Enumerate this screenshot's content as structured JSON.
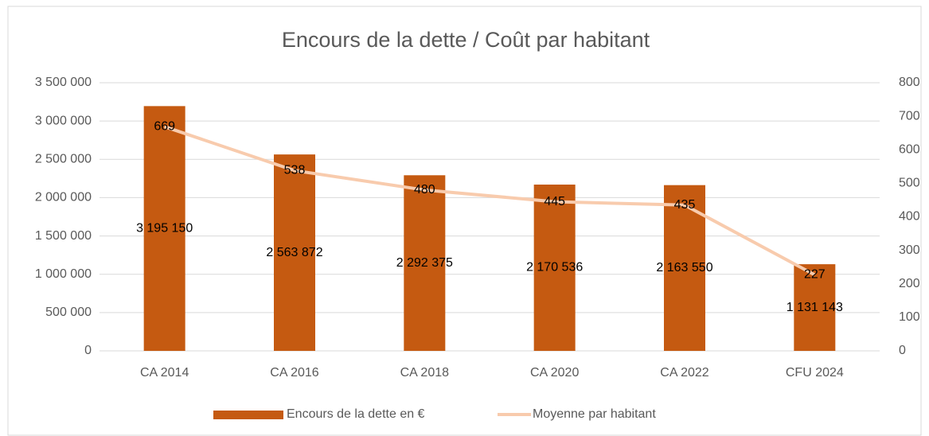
{
  "chart_data": {
    "type": "bar",
    "title": "Encours de la dette / Coût par habitant",
    "categories": [
      "CA 2014",
      "CA 2016",
      "CA 2018",
      "CA 2020",
      "CA 2022",
      "CFU 2024"
    ],
    "series": [
      {
        "name": "Encours de la dette en €",
        "type": "bar",
        "color": "#c55a11",
        "axis": "y",
        "values": [
          3195150,
          2563872,
          2292375,
          2170536,
          2163550,
          1131143
        ],
        "value_labels": [
          "3 195 150",
          "2 563 872",
          "2 292 375",
          "2 170 536",
          "2 163 550",
          "1 131 143"
        ]
      },
      {
        "name": "Moyenne par habitant",
        "type": "line",
        "color": "#f8cbad",
        "axis": "y2",
        "values": [
          669,
          538,
          480,
          445,
          435,
          227
        ]
      }
    ],
    "ylim": [
      0,
      3500000
    ],
    "yticks": [
      0,
      {
        "value": 500000,
        "label": "500 000"
      },
      {
        "value": 1000000,
        "label": "1 000 000"
      },
      {
        "value": 1500000,
        "label": "1 500 000"
      },
      {
        "value": 2000000,
        "label": "2 000 000"
      },
      {
        "value": 2500000,
        "label": "2 500 000"
      },
      {
        "value": 3000000,
        "label": "3 000 000"
      },
      {
        "value": 3500000,
        "label": "3 500 000"
      }
    ],
    "y2lim": [
      0,
      800
    ],
    "y2ticks": [
      0,
      100,
      200,
      300,
      400,
      500,
      600,
      700,
      800
    ],
    "grid": true,
    "legend": "bottom"
  }
}
